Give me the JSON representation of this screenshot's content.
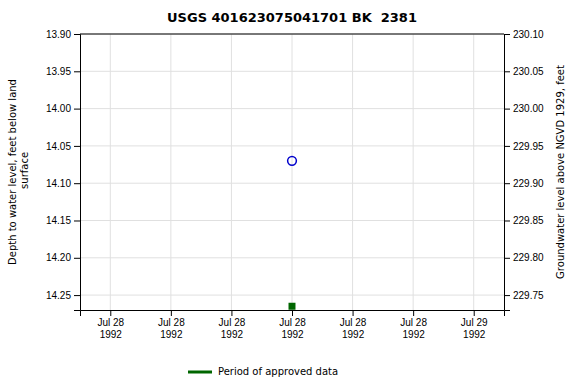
{
  "chart_data": {
    "type": "scatter",
    "title": "USGS 401623075041701 BK  2381",
    "ylabel": "Depth to water level, feet below land\n surface",
    "y2label": "Groundwater level above NGVD 1929, feet",
    "categories": [
      "Jul 28\n1992",
      "Jul 28\n1992",
      "Jul 28\n1992",
      "Jul 28\n1992",
      "Jul 28\n1992",
      "Jul 28\n1992",
      "Jul 29\n1992"
    ],
    "series": [
      {
        "color": "#0000cc",
        "marker": "circle",
        "values": [
          null,
          null,
          null,
          14.07,
          null,
          null,
          null
        ]
      },
      {
        "name": "Period of approved data",
        "color": "#006600",
        "marker": "square",
        "values": [
          null,
          null,
          null,
          14.265,
          null,
          null,
          null
        ]
      }
    ],
    "ylim": [
      14.27,
      13.9
    ],
    "yticks": [
      {
        "value": 13.9,
        "label": "13.90"
      },
      13.95,
      {
        "value": 14.0,
        "label": "14.00"
      },
      14.05,
      {
        "value": 14.1,
        "label": "14.10"
      },
      14.15,
      {
        "value": 14.2,
        "label": "14.20"
      },
      14.25
    ],
    "y2lim": [
      229.73,
      230.1
    ],
    "y2ticks": [
      229.75,
      {
        "value": 229.8,
        "label": "229.80"
      },
      229.85,
      {
        "value": 229.9,
        "label": "229.90"
      },
      229.95,
      {
        "value": 230.0,
        "label": "230.00"
      },
      230.05,
      {
        "value": 230.1,
        "label": "230.10"
      }
    ],
    "grid": true,
    "legend": "bottom"
  }
}
